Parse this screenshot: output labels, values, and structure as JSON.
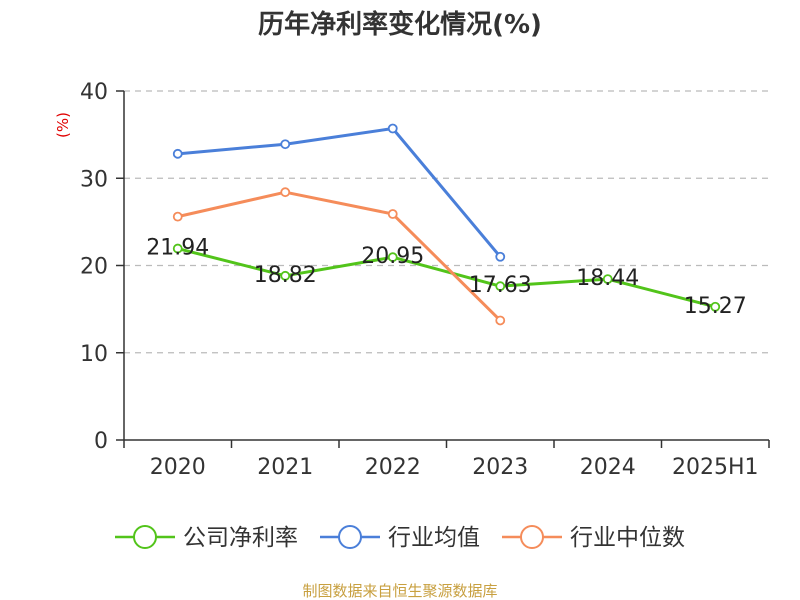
{
  "chart_data": {
    "type": "line",
    "title": "历年净利率变化情况(%)",
    "ylabel": "(%)",
    "xlabel": "",
    "categories": [
      "2020",
      "2021",
      "2022",
      "2023",
      "2024",
      "2025H1"
    ],
    "ylim": [
      0,
      40
    ],
    "yticks": [
      "0",
      "10",
      "20",
      "30",
      "40"
    ],
    "grid": "horizontal dashed",
    "legend_position": "bottom",
    "series": [
      {
        "name": "公司净利率",
        "color": "#52c41a",
        "values": [
          21.94,
          18.82,
          20.95,
          17.63,
          18.44,
          15.27
        ],
        "labels": [
          "21.94",
          "18.82",
          "20.95",
          "17.63",
          "18.44",
          "15.27"
        ]
      },
      {
        "name": "行业均值",
        "color": "#4a7fd9",
        "values": [
          32.8,
          33.9,
          35.7,
          21.0,
          null,
          null
        ]
      },
      {
        "name": "行业中位数",
        "color": "#f58c5a",
        "values": [
          25.6,
          28.4,
          25.9,
          13.7,
          null,
          null
        ]
      }
    ]
  },
  "source_text": "制图数据来自恒生聚源数据库"
}
